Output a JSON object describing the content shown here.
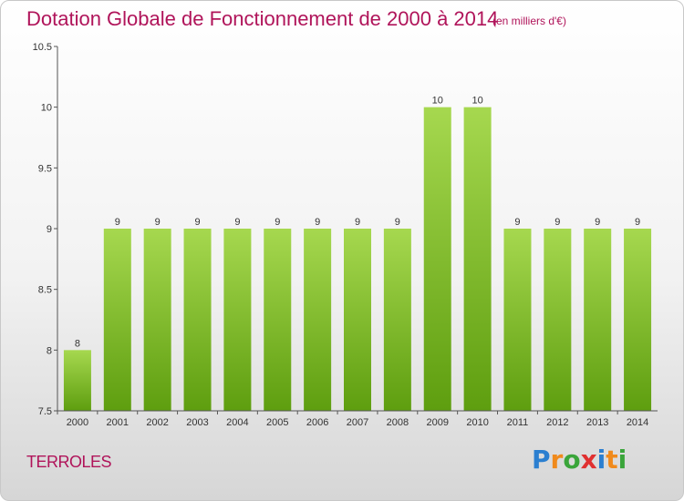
{
  "header": {
    "title": "Dotation Globale de Fonctionnement de 2000 à 2014",
    "subtitle": "(en milliers d'€)"
  },
  "footer": {
    "commune": "TERROLES",
    "logo_letters": [
      "P",
      "r",
      "o",
      "x",
      "i",
      "t",
      "i"
    ],
    "logo_colors": [
      "#2b7fd0",
      "#f08a1c",
      "#3aa53a",
      "#e03030",
      "#2b7fd0",
      "#f08a1c",
      "#3aa53a"
    ]
  },
  "colors": {
    "title": "#b0145a",
    "bar_light": "#a6d84f",
    "bar_dark": "#5e9e0f",
    "axis": "#555555",
    "tick_label": "#333333"
  },
  "chart_data": {
    "type": "bar",
    "categories": [
      "2000",
      "2001",
      "2002",
      "2003",
      "2004",
      "2005",
      "2006",
      "2007",
      "2008",
      "2009",
      "2010",
      "2011",
      "2012",
      "2013",
      "2014"
    ],
    "values": [
      8,
      9,
      9,
      9,
      9,
      9,
      9,
      9,
      9,
      10,
      10,
      9,
      9,
      9,
      9
    ],
    "data_labels": [
      "8",
      "9",
      "9",
      "9",
      "9",
      "9",
      "9",
      "9",
      "9",
      "10",
      "10",
      "9",
      "9",
      "9",
      "9"
    ],
    "ylim": [
      7.5,
      10.5
    ],
    "yticks": [
      7.5,
      8,
      8.5,
      9,
      9.5,
      10,
      10.5
    ],
    "ytick_labels": [
      "7.5",
      "8",
      "8.5",
      "9",
      "9.5",
      "10",
      "10.5"
    ],
    "grid": false,
    "legend": "none"
  }
}
